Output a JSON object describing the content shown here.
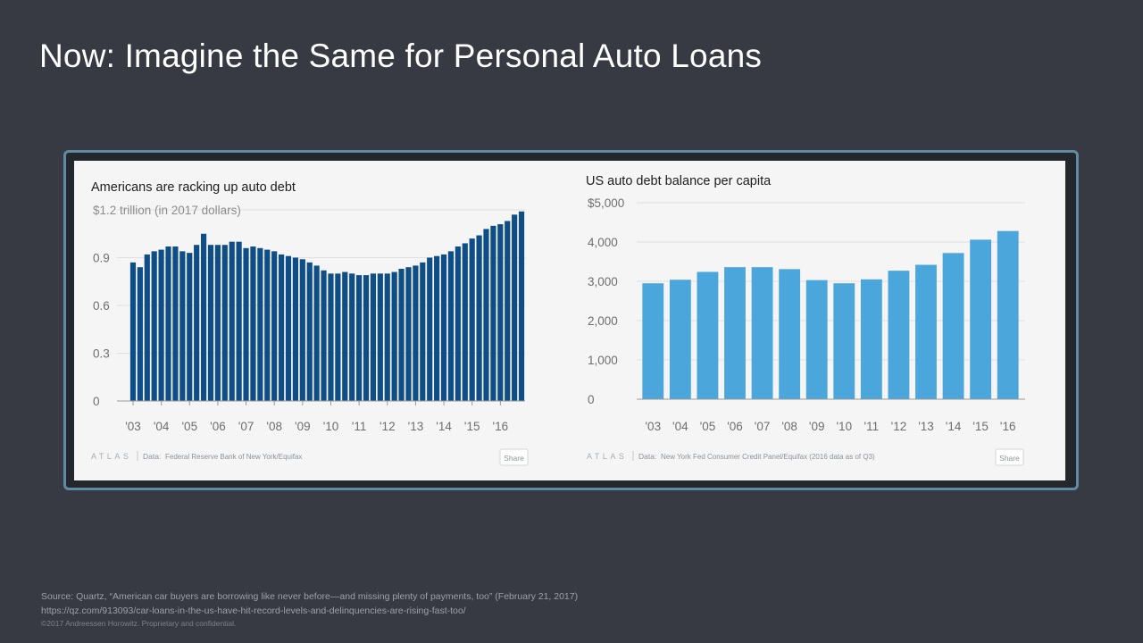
{
  "slide": {
    "title": "Now: Imagine the Same for Personal Auto Loans"
  },
  "colors": {
    "background": "#373a43",
    "frame_border": "#5f8aa3",
    "panel": "#f5f5f5",
    "left_bars": "#0e4d86",
    "right_bars": "#4ba6dc"
  },
  "chart_data": [
    {
      "type": "bar",
      "title": "Americans are racking up auto debt",
      "subtitle": "$1.2 trillion (in 2017 dollars)",
      "y_ticks": [
        "0",
        "0.3",
        "0.6",
        "0.9",
        "$1.2 trillion (in 2017 dollars)"
      ],
      "y_tick_values": [
        0,
        0.3,
        0.6,
        0.9,
        1.2
      ],
      "ylim": [
        0,
        1.2
      ],
      "x_tick_labels": [
        "'03",
        "'04",
        "'05",
        "'06",
        "'07",
        "'08",
        "'09",
        "'10",
        "'11",
        "'12",
        "'13",
        "'14",
        "'15",
        "'16"
      ],
      "x_start": 2003,
      "values": [
        0.87,
        0.84,
        0.92,
        0.94,
        0.95,
        0.97,
        0.97,
        0.94,
        0.93,
        0.98,
        1.05,
        0.98,
        0.98,
        0.98,
        1.0,
        1.0,
        0.96,
        0.97,
        0.96,
        0.95,
        0.94,
        0.92,
        0.91,
        0.9,
        0.89,
        0.87,
        0.85,
        0.82,
        0.8,
        0.8,
        0.81,
        0.8,
        0.79,
        0.79,
        0.8,
        0.8,
        0.8,
        0.81,
        0.83,
        0.84,
        0.85,
        0.87,
        0.9,
        0.91,
        0.92,
        0.94,
        0.97,
        0.99,
        1.02,
        1.04,
        1.08,
        1.1,
        1.11,
        1.13,
        1.17,
        1.19
      ],
      "grid": true,
      "source_label": "Data:",
      "source": "Federal Reserve Bank of New York/Equifax",
      "share_label": "Share",
      "logo_text": "ATLAS"
    },
    {
      "type": "bar",
      "title": "US auto debt balance per capita",
      "y_ticks": [
        "0",
        "1,000",
        "2,000",
        "3,000",
        "4,000",
        "$5,000"
      ],
      "y_tick_values": [
        0,
        1000,
        2000,
        3000,
        4000,
        5000
      ],
      "ylim": [
        0,
        5000
      ],
      "categories": [
        "'03",
        "'04",
        "'05",
        "'06",
        "'07",
        "'08",
        "'09",
        "'10",
        "'11",
        "'12",
        "'13",
        "'14",
        "'15",
        "'16"
      ],
      "values": [
        2950,
        3040,
        3240,
        3360,
        3360,
        3310,
        3030,
        2950,
        3050,
        3270,
        3420,
        3720,
        4060,
        4280
      ],
      "grid": true,
      "source_label": "Data:",
      "source": "New York Fed Consumer Credit Panel/Equifax (2016 data as of Q3)",
      "share_label": "Share",
      "logo_text": "ATLAS"
    }
  ],
  "footer": {
    "source_line": "Source: Quartz, “American car buyers are borrowing like never before—and missing plenty of payments, too” (February 21, 2017)",
    "url_line": "https://qz.com/913093/car-loans-in-the-us-have-hit-record-levels-and-delinquencies-are-rising-fast-too/",
    "copyright_line": "©2017 Andreessen Horowitz. Proprietary and confidential."
  }
}
